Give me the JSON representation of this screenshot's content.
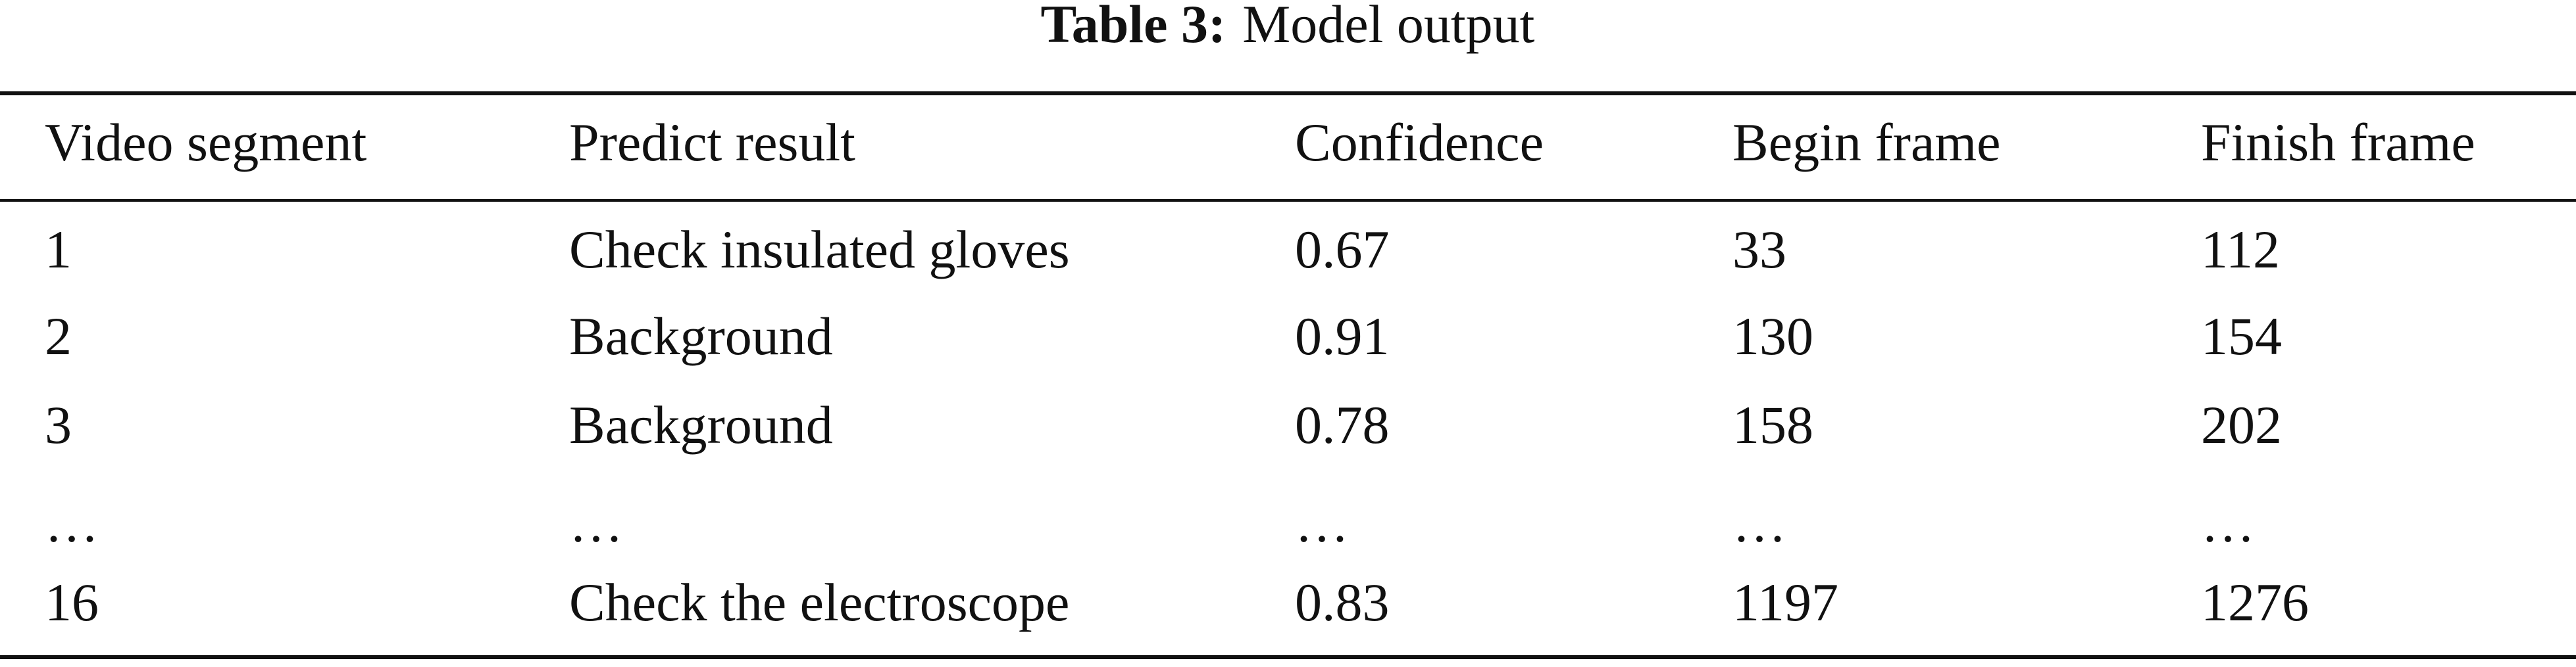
{
  "table": {
    "caption": {
      "label": "Table 3:",
      "title": "Model output"
    },
    "columns": [
      "Video segment",
      "Predict result",
      "Confidence",
      "Begin frame",
      "Finish frame"
    ],
    "rows": [
      [
        "1",
        "Check insulated gloves",
        "0.67",
        "33",
        "112"
      ],
      [
        "2",
        "Background",
        "0.91",
        "130",
        "154"
      ],
      [
        "3",
        "Background",
        "0.78",
        "158",
        "202"
      ],
      [
        "…",
        "…",
        "…",
        "…",
        "…"
      ],
      [
        "16",
        "Check the electroscope",
        "0.83",
        "1197",
        "1276"
      ]
    ]
  }
}
